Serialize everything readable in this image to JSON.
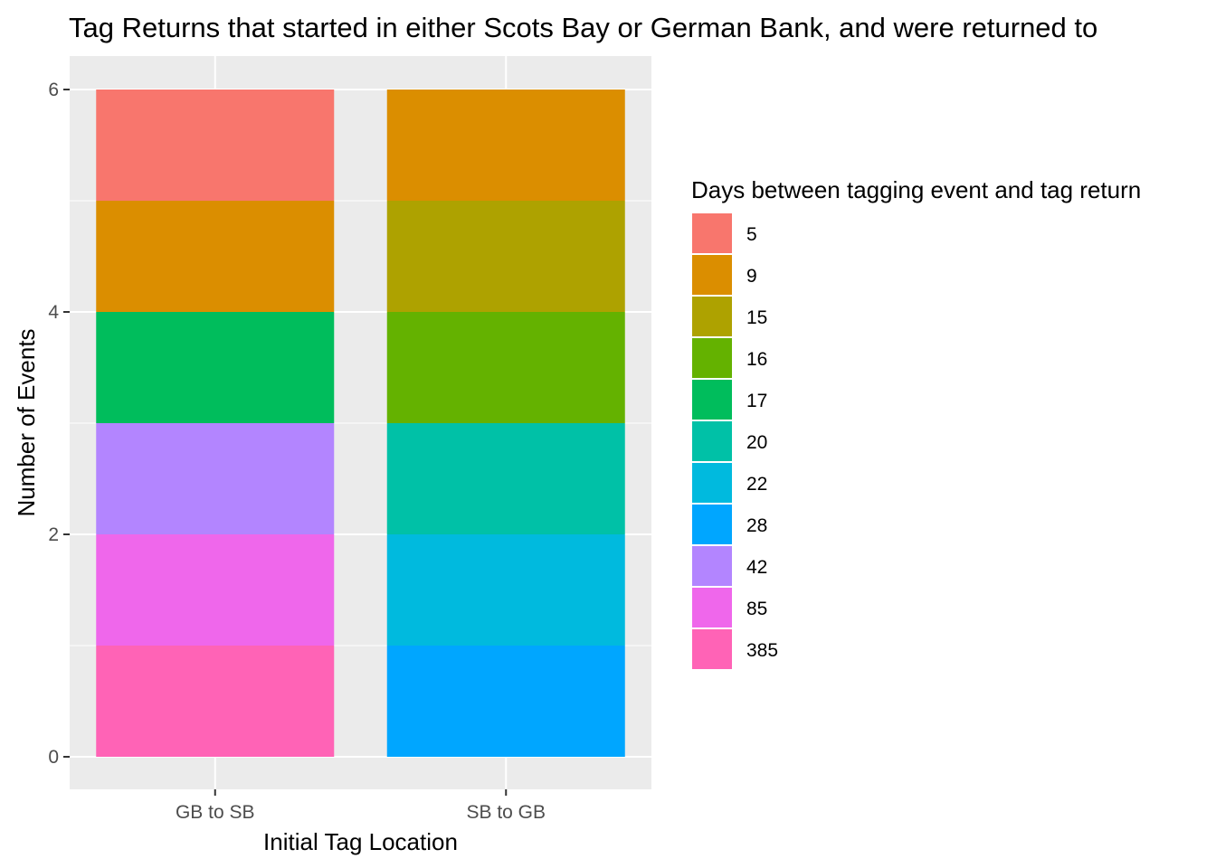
{
  "chart_data": {
    "type": "bar",
    "stacked": true,
    "title": "Tag Returns that started in either Scots Bay or German Bank, and were returned to",
    "xlabel": "Initial Tag Location",
    "ylabel": "Number of Events",
    "categories": [
      "GB to SB",
      "SB to GB"
    ],
    "ylim": [
      0,
      6
    ],
    "yticks": [
      "0",
      "2",
      "4",
      "6"
    ],
    "grid": true,
    "legend": {
      "title": "Days between tagging event and tag return",
      "position": "right",
      "entries": [
        {
          "label": "5",
          "color": "#F8766D"
        },
        {
          "label": "9",
          "color": "#DB8E00"
        },
        {
          "label": "15",
          "color": "#AEA200"
        },
        {
          "label": "16",
          "color": "#64B200"
        },
        {
          "label": "17",
          "color": "#00BD5C"
        },
        {
          "label": "20",
          "color": "#00C1A7"
        },
        {
          "label": "22",
          "color": "#00BADE"
        },
        {
          "label": "28",
          "color": "#00A6FF"
        },
        {
          "label": "42",
          "color": "#B385FF"
        },
        {
          "label": "85",
          "color": "#EF67EB"
        },
        {
          "label": "385",
          "color": "#FF63B6"
        }
      ]
    },
    "series": [
      {
        "name": "5",
        "values": [
          1,
          0
        ]
      },
      {
        "name": "9",
        "values": [
          1,
          1
        ]
      },
      {
        "name": "15",
        "values": [
          0,
          1
        ]
      },
      {
        "name": "16",
        "values": [
          0,
          1
        ]
      },
      {
        "name": "17",
        "values": [
          1,
          0
        ]
      },
      {
        "name": "20",
        "values": [
          0,
          1
        ]
      },
      {
        "name": "22",
        "values": [
          0,
          1
        ]
      },
      {
        "name": "28",
        "values": [
          0,
          1
        ]
      },
      {
        "name": "42",
        "values": [
          1,
          0
        ]
      },
      {
        "name": "85",
        "values": [
          1,
          0
        ]
      },
      {
        "name": "385",
        "values": [
          1,
          0
        ]
      }
    ],
    "colors": {
      "panel_background": "#EBEBEB",
      "grid_line": "#FFFFFF",
      "tick_label": "#4D4D4D"
    }
  }
}
